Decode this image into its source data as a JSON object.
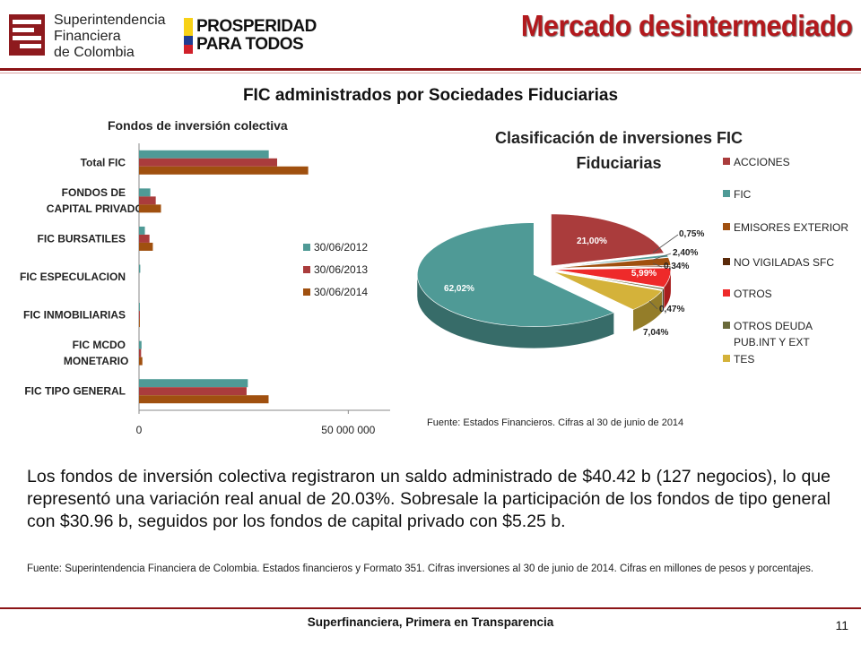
{
  "header": {
    "logo_sfc_text": "Superintendencia\nFinanciera\nde Colombia",
    "logo_pp_text": "PROSPERIDAD\nPARA TODOS",
    "title": "Mercado desintermediado"
  },
  "section_title": "FIC administrados por Sociedades Fiduciarias",
  "colors": {
    "series_2012": "#4f9a96",
    "series_2013": "#aa3c3c",
    "series_2014": "#a0500f",
    "title_red": "#b3191d"
  },
  "chart_data": [
    {
      "type": "bar",
      "orientation": "horizontal",
      "title": "Fondos de inversión colectiva",
      "categories": [
        "Total FIC",
        "FONDOS DE CAPITAL PRIVADO",
        "FIC BURSATILES",
        "FIC ESPECULACION",
        "FIC INMOBILIARIAS",
        "FIC MCDO MONETARIO",
        "FIC TIPO GENERAL"
      ],
      "series": [
        {
          "name": "30/06/2012",
          "color": "#4f9a96",
          "values": [
            31000000,
            2700000,
            1400000,
            300000,
            200000,
            600000,
            26000000
          ]
        },
        {
          "name": "30/06/2013",
          "color": "#aa3c3c",
          "values": [
            33000000,
            4000000,
            2500000,
            0,
            200000,
            500000,
            25700000
          ]
        },
        {
          "name": "30/06/2014",
          "color": "#a0500f",
          "values": [
            40420000,
            5250000,
            3300000,
            0,
            200000,
            800000,
            30960000
          ]
        }
      ],
      "xlim": [
        0,
        60000000
      ],
      "xticks": [
        "0",
        "50 000 000"
      ],
      "xtick_values": [
        0,
        50000000
      ],
      "legend": "right"
    },
    {
      "type": "pie",
      "title": "Clasificación de inversiones FIC\nFiduciarias",
      "slices": [
        {
          "name": "ACCIONES",
          "value": 21.0,
          "label": "21,00%",
          "color": "#aa3c3c"
        },
        {
          "name": "FIC",
          "value": 0.75,
          "label": "0,75%",
          "color": "#4f9a96"
        },
        {
          "name": "EMISORES EXTERIOR",
          "value": 2.4,
          "label": "2,40%",
          "color": "#a0500f"
        },
        {
          "name": "NO VIGILADAS SFC",
          "value": 0.34,
          "label": "0,34%",
          "color": "#5a2a0a"
        },
        {
          "name": "OTROS",
          "value": 5.99,
          "label": "5,99%",
          "color": "#ee2a2a"
        },
        {
          "name": "OTROS DEUDA PUB.INT Y EXT",
          "value": 0.47,
          "label": "0,47%",
          "color": "#6a6a3a"
        },
        {
          "name": "TES",
          "value": 7.04,
          "label": "7,04%",
          "color": "#d4b23a"
        },
        {
          "name": "",
          "value": 62.02,
          "label": "62,02%",
          "color": "#4f9a96"
        }
      ],
      "legend": "right",
      "source": "Fuente: Estados Financieros. Cifras al 30 de junio de 2014"
    }
  ],
  "body_text": "Los fondos de inversión colectiva registraron un saldo administrado de $40.42 b (127 negocios), lo que representó una variación real anual de 20.03%. Sobresale la participación de los fondos de tipo general con $30.96 b, seguidos por los fondos de capital privado con $5.25 b.",
  "footnote": "Fuente: Superintendencia Financiera de Colombia. Estados financieros y Formato 351. Cifras inversiones al 30 de junio de 2014. Cifras en millones de pesos y porcentajes.",
  "footer": {
    "text": "Superfinanciera, Primera en Transparencia",
    "page_number": "11"
  }
}
